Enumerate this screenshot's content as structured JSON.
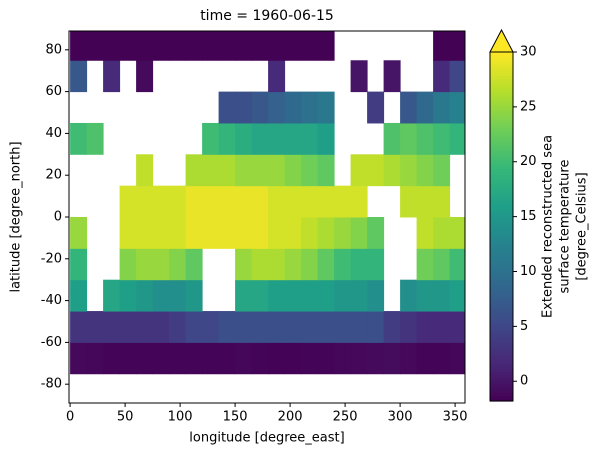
{
  "chart_data": {
    "type": "heatmap",
    "title": "time = 1960-06-15",
    "xlabel": "longitude [degree_east]",
    "ylabel": "latitude [degree_north]",
    "colorbar_label": [
      "Extended reconstructed sea",
      "surface temperature",
      "[degree_Celsius]"
    ],
    "colormap": "viridis",
    "colorbar_extend": "max",
    "clim": [
      -1.8,
      30
    ],
    "colorbar_ticks": [
      0,
      5,
      10,
      15,
      20,
      25,
      30
    ],
    "xlim": [
      -1,
      359
    ],
    "ylim": [
      -89,
      89
    ],
    "xticks": [
      0,
      50,
      100,
      150,
      200,
      250,
      300,
      350
    ],
    "yticks": [
      -80,
      -60,
      -40,
      -20,
      0,
      20,
      40,
      60,
      80
    ],
    "x": [
      7.5,
      22.5,
      37.5,
      52.5,
      67.5,
      82.5,
      97.5,
      112.5,
      127.5,
      142.5,
      157.5,
      172.5,
      187.5,
      202.5,
      217.5,
      232.5,
      247.5,
      262.5,
      277.5,
      292.5,
      307.5,
      322.5,
      337.5,
      352.5
    ],
    "y": [
      -82.5,
      -67.5,
      -52.5,
      -37.5,
      -22.5,
      -7.5,
      7.5,
      22.5,
      37.5,
      52.5,
      67.5,
      82.5
    ],
    "values": [
      [
        null,
        null,
        null,
        null,
        null,
        null,
        null,
        null,
        null,
        null,
        null,
        null,
        null,
        null,
        null,
        null,
        null,
        null,
        null,
        null,
        null,
        null,
        null,
        null
      ],
      [
        -1.2,
        -1.3,
        -1.4,
        -1.4,
        -1.5,
        -1.5,
        -1.5,
        -1.5,
        -1.5,
        -1.4,
        -1.3,
        -1.5,
        -1.6,
        -1.6,
        -1.5,
        -1.4,
        -1.3,
        -1.2,
        -1.0,
        -0.8,
        -1.2,
        -1.4,
        -1.4,
        -1.3
      ],
      [
        3,
        3,
        3,
        3,
        3,
        3,
        4,
        5,
        5,
        6,
        6,
        6,
        6,
        6,
        6,
        6,
        6,
        6,
        6,
        4,
        3,
        2,
        2,
        2
      ],
      [
        16,
        null,
        17,
        16,
        15,
        14,
        14,
        15,
        null,
        null,
        17,
        17,
        16,
        16,
        16,
        16,
        15,
        15,
        14,
        null,
        14,
        15,
        15,
        16
      ],
      [
        19,
        null,
        null,
        24,
        25,
        25,
        24,
        22,
        null,
        null,
        25,
        26,
        26,
        25,
        24,
        22,
        20,
        19,
        19,
        null,
        null,
        23,
        22,
        20
      ],
      [
        25,
        null,
        null,
        28,
        28,
        28,
        28,
        29,
        29,
        29,
        29,
        29,
        28,
        28,
        27,
        26,
        25,
        24,
        22,
        null,
        null,
        27,
        26,
        26
      ],
      [
        null,
        null,
        null,
        28,
        28,
        28,
        28,
        29,
        29,
        29,
        29,
        29,
        28,
        28,
        28,
        28,
        28,
        28,
        null,
        null,
        27,
        27,
        27,
        null
      ],
      [
        null,
        null,
        null,
        null,
        27,
        null,
        null,
        26,
        26,
        26,
        25,
        25,
        25,
        24,
        23,
        22,
        null,
        27,
        27,
        26,
        25,
        24,
        23,
        null
      ],
      [
        20,
        21,
        null,
        null,
        null,
        null,
        null,
        null,
        20,
        19,
        18,
        17,
        17,
        17,
        17,
        16,
        null,
        null,
        null,
        21,
        22,
        21,
        20,
        19
      ],
      [
        null,
        null,
        null,
        null,
        null,
        null,
        null,
        null,
        null,
        6,
        6,
        7,
        8,
        9,
        10,
        11,
        null,
        null,
        4,
        null,
        7,
        9,
        11,
        12
      ],
      [
        7,
        null,
        2,
        null,
        -1,
        null,
        null,
        null,
        null,
        null,
        null,
        null,
        2,
        null,
        null,
        null,
        null,
        0,
        null,
        0,
        null,
        null,
        2,
        5
      ],
      [
        -1.7,
        -1.7,
        -1.7,
        -1.7,
        -1.7,
        -1.7,
        -1.7,
        -1.7,
        -1.7,
        -1.7,
        -1.7,
        -1.7,
        -1.7,
        -1.7,
        -1.7,
        -1.7,
        null,
        null,
        null,
        null,
        null,
        null,
        -1.7,
        -1.7
      ]
    ]
  }
}
